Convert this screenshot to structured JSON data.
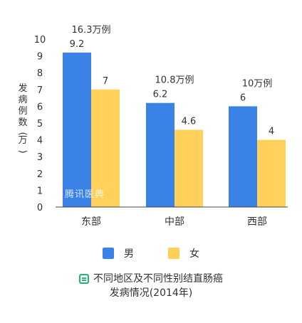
{
  "chart_data": {
    "type": "bar",
    "categories": [
      "东部",
      "中部",
      "西部"
    ],
    "series": [
      {
        "name": "男",
        "values": [
          9.2,
          6.2,
          6
        ],
        "labels": [
          "9.2",
          "6.2",
          "6"
        ],
        "color": "#3b82e6"
      },
      {
        "name": "女",
        "values": [
          7,
          4.6,
          4
        ],
        "labels": [
          "7",
          "4.6",
          "4"
        ],
        "color": "#ffd05a"
      }
    ],
    "group_totals": [
      "16.3万例",
      "10.8万例",
      "10万例"
    ],
    "ylabel": "发病例数(万)",
    "ylim": [
      0,
      10
    ],
    "yticks": [
      "0",
      "1",
      "2",
      "3",
      "4",
      "5",
      "6",
      "7",
      "8",
      "9",
      "10"
    ],
    "grid": false,
    "legend_position": "bottom",
    "title_line1": "不同地区及不同性别结直肠癌",
    "title_line2": "发病情况(2014年)"
  },
  "legend": {
    "male_label": "男",
    "female_label": "女"
  },
  "watermark": "腾讯医典",
  "icons": {
    "caption_icon": "book-icon"
  }
}
